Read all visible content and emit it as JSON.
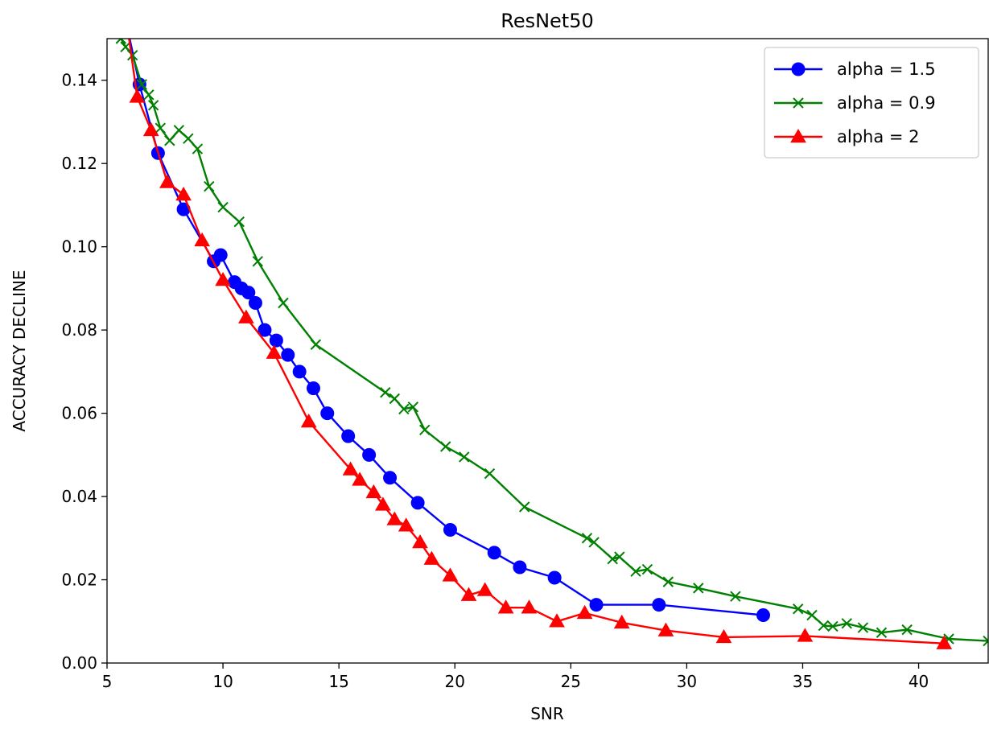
{
  "chart_data": {
    "type": "line",
    "title": "ResNet50",
    "xlabel": "SNR",
    "ylabel": "ACCURACY DECLINE",
    "xlim": [
      5,
      43
    ],
    "ylim": [
      0,
      0.15
    ],
    "xticks": [
      5,
      10,
      15,
      20,
      25,
      30,
      35,
      40
    ],
    "xtick_labels": [
      "5",
      "10",
      "15",
      "20",
      "25",
      "30",
      "35",
      "40"
    ],
    "yticks": [
      0.0,
      0.02,
      0.04,
      0.06,
      0.08,
      0.1,
      0.12,
      0.14
    ],
    "ytick_labels": [
      "0.00",
      "0.02",
      "0.04",
      "0.06",
      "0.08",
      "0.10",
      "0.12",
      "0.14"
    ],
    "grid": false,
    "legend_position": "top-right",
    "series": [
      {
        "name": "alpha = 1.5",
        "color": "#0000ff",
        "marker": "circle",
        "points": [
          [
            5.9,
            0.152
          ],
          [
            6.4,
            0.139
          ],
          [
            7.2,
            0.1225
          ],
          [
            8.3,
            0.109
          ],
          [
            9.6,
            0.0965
          ],
          [
            9.9,
            0.098
          ],
          [
            10.5,
            0.0915
          ],
          [
            10.8,
            0.09
          ],
          [
            11.1,
            0.089
          ],
          [
            11.4,
            0.0865
          ],
          [
            11.8,
            0.08
          ],
          [
            12.3,
            0.0775
          ],
          [
            12.8,
            0.074
          ],
          [
            13.3,
            0.07
          ],
          [
            13.9,
            0.066
          ],
          [
            14.5,
            0.06
          ],
          [
            15.4,
            0.0545
          ],
          [
            16.3,
            0.05
          ],
          [
            17.2,
            0.0445
          ],
          [
            18.4,
            0.0385
          ],
          [
            19.8,
            0.032
          ],
          [
            21.7,
            0.0265
          ],
          [
            22.8,
            0.023
          ],
          [
            24.3,
            0.0205
          ],
          [
            26.1,
            0.014
          ],
          [
            28.8,
            0.014
          ],
          [
            33.3,
            0.0115
          ]
        ]
      },
      {
        "name": "alpha = 0.9",
        "color": "#008000",
        "marker": "x",
        "points": [
          [
            5.6,
            0.15
          ],
          [
            5.8,
            0.148
          ],
          [
            6.1,
            0.146
          ],
          [
            6.5,
            0.139
          ],
          [
            6.8,
            0.1365
          ],
          [
            7.0,
            0.134
          ],
          [
            7.3,
            0.1285
          ],
          [
            7.7,
            0.1255
          ],
          [
            8.1,
            0.128
          ],
          [
            8.5,
            0.126
          ],
          [
            8.9,
            0.1235
          ],
          [
            9.4,
            0.1145
          ],
          [
            10.0,
            0.1095
          ],
          [
            10.7,
            0.106
          ],
          [
            11.5,
            0.0965
          ],
          [
            12.6,
            0.0865
          ],
          [
            14.0,
            0.0765
          ],
          [
            17.0,
            0.065
          ],
          [
            17.4,
            0.0635
          ],
          [
            17.8,
            0.061
          ],
          [
            18.2,
            0.0615
          ],
          [
            18.7,
            0.056
          ],
          [
            19.6,
            0.052
          ],
          [
            20.4,
            0.0495
          ],
          [
            21.5,
            0.0455
          ],
          [
            23.0,
            0.0375
          ],
          [
            25.7,
            0.03
          ],
          [
            26.0,
            0.029
          ],
          [
            26.8,
            0.025
          ],
          [
            27.1,
            0.0255
          ],
          [
            27.8,
            0.022
          ],
          [
            28.3,
            0.0225
          ],
          [
            29.2,
            0.0195
          ],
          [
            30.5,
            0.018
          ],
          [
            32.1,
            0.016
          ],
          [
            34.8,
            0.013
          ],
          [
            35.4,
            0.0115
          ],
          [
            35.9,
            0.009
          ],
          [
            36.3,
            0.0088
          ],
          [
            36.9,
            0.0095
          ],
          [
            37.6,
            0.0085
          ],
          [
            38.4,
            0.0073
          ],
          [
            39.5,
            0.008
          ],
          [
            41.3,
            0.0058
          ],
          [
            43.0,
            0.0053
          ]
        ]
      },
      {
        "name": "alpha = 2",
        "color": "#ff0000",
        "marker": "triangle",
        "points": [
          [
            5.9,
            0.152
          ],
          [
            6.3,
            0.136
          ],
          [
            6.9,
            0.128
          ],
          [
            7.6,
            0.1155
          ],
          [
            8.3,
            0.1125
          ],
          [
            9.1,
            0.1015
          ],
          [
            10.0,
            0.092
          ],
          [
            11.0,
            0.083
          ],
          [
            12.2,
            0.0745
          ],
          [
            13.7,
            0.058
          ],
          [
            15.5,
            0.0465
          ],
          [
            15.9,
            0.044
          ],
          [
            16.5,
            0.041
          ],
          [
            16.9,
            0.038
          ],
          [
            17.4,
            0.0345
          ],
          [
            17.9,
            0.033
          ],
          [
            18.5,
            0.029
          ],
          [
            19.0,
            0.025
          ],
          [
            19.8,
            0.021
          ],
          [
            20.6,
            0.0163
          ],
          [
            21.3,
            0.0175
          ],
          [
            22.2,
            0.0133
          ],
          [
            23.2,
            0.0133
          ],
          [
            24.4,
            0.01
          ],
          [
            25.6,
            0.012
          ],
          [
            27.2,
            0.0097
          ],
          [
            29.1,
            0.0078
          ],
          [
            31.6,
            0.0062
          ],
          [
            35.1,
            0.0065
          ],
          [
            41.1,
            0.0047
          ]
        ]
      }
    ]
  }
}
